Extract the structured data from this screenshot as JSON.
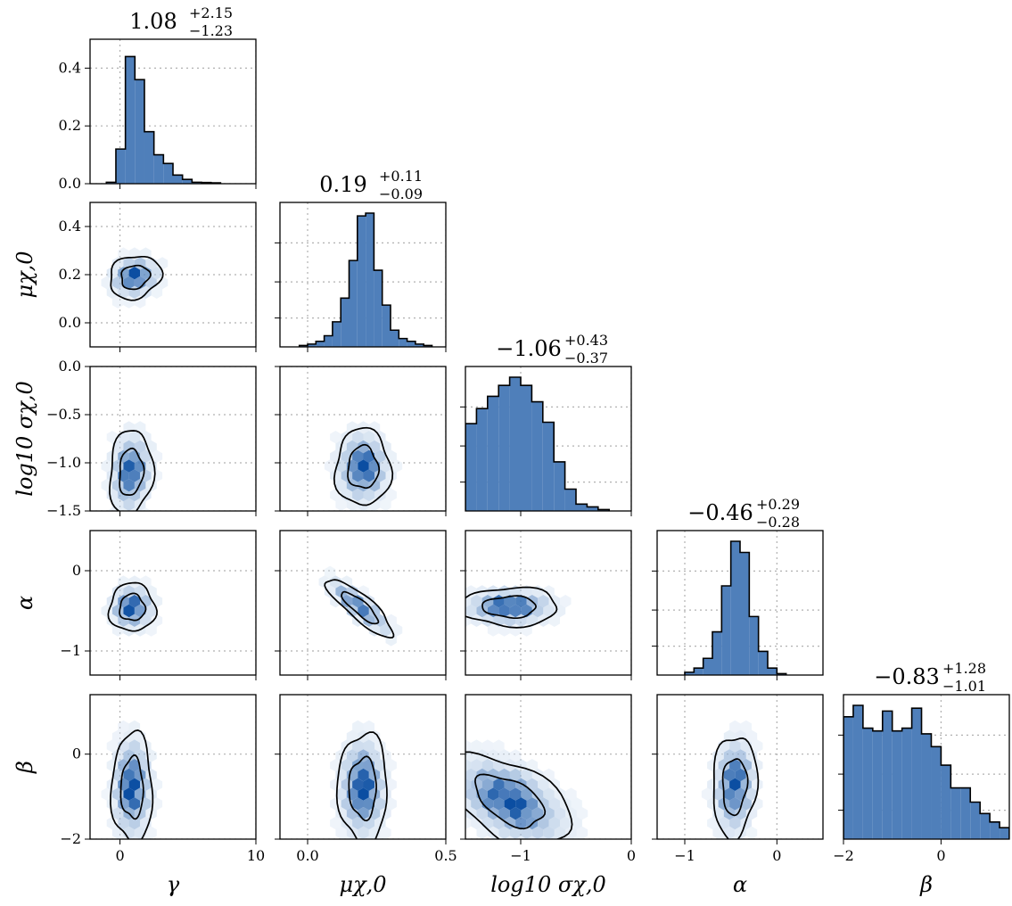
{
  "chart_data": {
    "type": "corner",
    "parameters": [
      {
        "key": "gamma",
        "symbol": "γ",
        "axis_label": "γ",
        "range": [
          -2.2,
          10
        ],
        "ticks": [
          0,
          10
        ],
        "tick_labels": [
          "0",
          "10"
        ],
        "stat": {
          "median": "1.08",
          "plus": "+2.15",
          "minus": "−1.23"
        }
      },
      {
        "key": "mu_chi_0",
        "symbol": "μχ,0",
        "axis_label": "μχ,0",
        "range": [
          -0.1,
          0.5
        ],
        "ticks": [
          0,
          0.5
        ],
        "tick_labels": [
          "0.0",
          "0.5"
        ],
        "y_ticks": [
          0,
          0.2,
          0.4
        ],
        "y_tick_labels": [
          "0.0",
          "0.2",
          "0.4"
        ],
        "stat": {
          "median": "0.19",
          "plus": "+0.11",
          "minus": "−0.09"
        }
      },
      {
        "key": "log10_sigma_chi_0",
        "symbol": "log10 σχ,0",
        "axis_label": "log10 σχ,0",
        "range": [
          -1.5,
          0
        ],
        "ticks": [
          -1,
          0
        ],
        "tick_labels": [
          "−1",
          "0"
        ],
        "y_ticks": [
          -1.5,
          -1,
          -0.5,
          0
        ],
        "y_tick_labels": [
          "−1.5",
          "−1.0",
          "−0.5",
          "0.0"
        ],
        "stat": {
          "median": "−1.06",
          "plus": "+0.43",
          "minus": "−0.37"
        }
      },
      {
        "key": "alpha",
        "symbol": "α",
        "axis_label": "α",
        "range": [
          -1.3,
          0.5
        ],
        "ticks": [
          -1,
          0
        ],
        "tick_labels": [
          "−1",
          "0"
        ],
        "y_ticks": [
          -1,
          0
        ],
        "y_tick_labels": [
          "−1",
          "0"
        ],
        "stat": {
          "median": "−0.46",
          "plus": "+0.29",
          "minus": "−0.28"
        }
      },
      {
        "key": "beta",
        "symbol": "β",
        "axis_label": "β",
        "range": [
          -2,
          1.4
        ],
        "ticks": [
          -2,
          0
        ],
        "tick_labels": [
          "−2",
          "0"
        ],
        "y_ticks": [
          -2,
          0
        ],
        "y_tick_labels": [
          "−2",
          "0"
        ],
        "stat": {
          "median": "−0.83",
          "plus": "+1.28",
          "minus": "−1.01"
        }
      }
    ],
    "first_histogram": {
      "y_range": [
        0,
        0.5
      ],
      "y_ticks": [
        0,
        0.2,
        0.4
      ],
      "y_tick_labels": [
        "0.0",
        "0.2",
        "0.4"
      ]
    },
    "histograms": {
      "gamma": {
        "edges": [
          -1,
          -0.3,
          0.4,
          1.1,
          1.8,
          2.5,
          3.2,
          3.9,
          4.6,
          5.3,
          6,
          6.7,
          7.4
        ],
        "density": [
          0.005,
          0.12,
          0.44,
          0.36,
          0.18,
          0.1,
          0.07,
          0.03,
          0.015,
          0.005,
          0.004,
          0.003
        ]
      },
      "mu_chi_0": {
        "edges": [
          -0.03,
          0,
          0.03,
          0.06,
          0.09,
          0.12,
          0.15,
          0.18,
          0.21,
          0.24,
          0.27,
          0.3,
          0.33,
          0.36,
          0.39,
          0.42,
          0.45
        ],
        "density": [
          0.01,
          0.02,
          0.04,
          0.08,
          0.18,
          0.35,
          0.62,
          0.94,
          0.96,
          0.55,
          0.3,
          0.12,
          0.06,
          0.04,
          0.02,
          0.01
        ]
      },
      "log10_sigma_chi_0": {
        "edges": [
          -1.5,
          -1.4,
          -1.3,
          -1.2,
          -1.1,
          -1.0,
          -0.9,
          -0.8,
          -0.7,
          -0.6,
          -0.5,
          -0.4,
          -0.3,
          -0.2
        ],
        "density": [
          0.64,
          0.75,
          0.84,
          0.92,
          0.98,
          0.92,
          0.8,
          0.65,
          0.36,
          0.16,
          0.05,
          0.03,
          0.01
        ]
      },
      "alpha": {
        "edges": [
          -1.0,
          -0.9,
          -0.8,
          -0.7,
          -0.6,
          -0.5,
          -0.4,
          -0.3,
          -0.2,
          -0.1,
          0,
          0.1
        ],
        "density": [
          0.02,
          0.05,
          0.12,
          0.31,
          0.64,
          0.96,
          0.88,
          0.42,
          0.17,
          0.05,
          0.01
        ]
      },
      "beta": {
        "edges": [
          -2.0,
          -1.8,
          -1.6,
          -1.4,
          -1.2,
          -1.0,
          -0.8,
          -0.6,
          -0.4,
          -0.2,
          0,
          0.2,
          0.4,
          0.6,
          0.8,
          1.0,
          1.2,
          1.4
        ],
        "density": [
          0.86,
          0.94,
          0.78,
          0.76,
          0.9,
          0.76,
          0.78,
          0.92,
          0.74,
          0.65,
          0.52,
          0.36,
          0.36,
          0.26,
          0.18,
          0.12,
          0.08
        ]
      }
    },
    "pairs": [
      {
        "x": "gamma",
        "y": "mu_chi_0",
        "center": [
          1.1,
          0.19
        ],
        "spread": [
          0.95,
          0.045
        ],
        "rho": 0.15
      },
      {
        "x": "gamma",
        "y": "log10_sigma_chi_0",
        "center": [
          0.8,
          -1.1
        ],
        "spread": [
          0.8,
          0.22
        ],
        "rho": 0.1
      },
      {
        "x": "mu_chi_0",
        "y": "log10_sigma_chi_0",
        "center": [
          0.2,
          -1.05
        ],
        "spread": [
          0.05,
          0.2
        ],
        "rho": 0.0
      },
      {
        "x": "gamma",
        "y": "alpha",
        "center": [
          0.9,
          -0.46
        ],
        "spread": [
          0.85,
          0.15
        ],
        "rho": 0.0
      },
      {
        "x": "mu_chi_0",
        "y": "alpha",
        "center": [
          0.19,
          -0.46
        ],
        "spread": [
          0.06,
          0.18
        ],
        "rho": -0.85
      },
      {
        "x": "log10_sigma_chi_0",
        "y": "alpha",
        "center": [
          -1.1,
          -0.45
        ],
        "spread": [
          0.22,
          0.12
        ],
        "rho": 0.0
      },
      {
        "x": "gamma",
        "y": "beta",
        "center": [
          0.9,
          -0.8
        ],
        "spread": [
          0.75,
          0.65
        ],
        "rho": 0.0
      },
      {
        "x": "mu_chi_0",
        "y": "beta",
        "center": [
          0.2,
          -0.8
        ],
        "spread": [
          0.045,
          0.65
        ],
        "rho": 0.0
      },
      {
        "x": "log10_sigma_chi_0",
        "y": "beta",
        "center": [
          -1.1,
          -1.1
        ],
        "spread": [
          0.28,
          0.55
        ],
        "rho": -0.5
      },
      {
        "x": "alpha",
        "y": "beta",
        "center": [
          -0.46,
          -0.75
        ],
        "spread": [
          0.12,
          0.6
        ],
        "rho": 0.1
      }
    ],
    "colors": {
      "fill": "#4f7fba",
      "hex_light": "#dce8f5",
      "hex_dark": "#0b4ea2",
      "contour": "#000000",
      "grid": "#b0b0b0"
    },
    "grid": true
  }
}
